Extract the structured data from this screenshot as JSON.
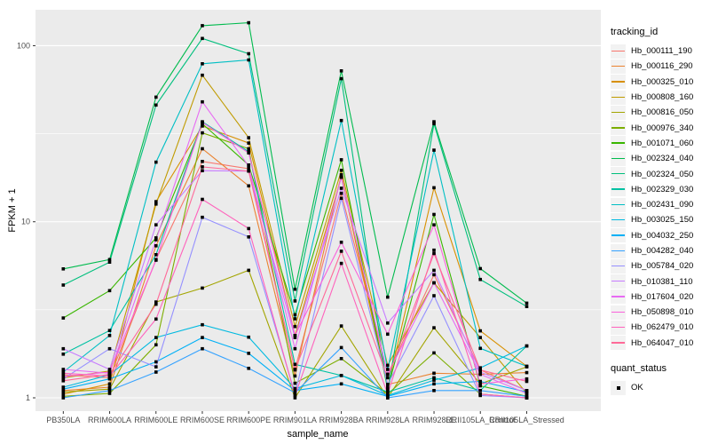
{
  "figure": {
    "background": "#FFFFFF",
    "panel_background": "#EBEBEB",
    "grid_color": "#FFFFFF",
    "tick_color": "#333333",
    "tick_label_color": "#4D4D4D",
    "point_color": "#000000"
  },
  "chart_data": {
    "type": "line",
    "title": "",
    "xlabel": "sample_name",
    "ylabel": "FPKM + 1",
    "y_scale": "log10",
    "grid": true,
    "legend_position": "right",
    "y_ticks": [
      "100",
      "10",
      "1"
    ],
    "y_tick_values": [
      100,
      10,
      1
    ],
    "y_minor_values": [
      3.1623,
      31.623
    ],
    "ylim": [
      0.84,
      160
    ],
    "categories": [
      "PB350LA",
      "RRIM600LA",
      "RRIM600LE",
      "RRIM600SE",
      "RRIM600PE",
      "RRIM901LA",
      "RRIM928BA",
      "RRIM928LA",
      "RRIM928LE",
      "RRII105LA_Control",
      "RRII105LA_Stressed"
    ],
    "legend_titles": {
      "series": "tracking_id",
      "shape": "quant_status"
    },
    "quant_status": {
      "label": "OK"
    },
    "series": [
      {
        "name": "Hb_000111_190",
        "color": "#F8766D",
        "values": [
          1.35,
          1.3,
          6.1,
          22.0,
          20.0,
          1.45,
          14.5,
          1.36,
          5.0,
          1.44,
          1.1
        ]
      },
      {
        "name": "Hb_000116_290",
        "color": "#EA8331",
        "values": [
          1.1,
          1.15,
          7.3,
          26.0,
          16.0,
          1.33,
          18.5,
          1.19,
          1.38,
          1.36,
          1.39
        ]
      },
      {
        "name": "Hb_000325_010",
        "color": "#D89000",
        "values": [
          1.05,
          1.2,
          13.0,
          35.0,
          28.0,
          2.26,
          17.9,
          1.15,
          15.6,
          2.4,
          1.51
        ]
      },
      {
        "name": "Hb_000808_160",
        "color": "#C09B00",
        "values": [
          1.3,
          1.42,
          12.6,
          68.0,
          30.0,
          2.54,
          19.6,
          1.53,
          4.5,
          2.2,
          1.06
        ]
      },
      {
        "name": "Hb_000816_050",
        "color": "#A3A500",
        "values": [
          1.08,
          1.12,
          3.5,
          4.2,
          5.3,
          1.0,
          2.56,
          1.0,
          2.5,
          1.2,
          1.5
        ]
      },
      {
        "name": "Hb_000976_340",
        "color": "#7CAE00",
        "values": [
          1.02,
          1.06,
          2.0,
          32.0,
          26.0,
          1.21,
          1.67,
          1.05,
          1.8,
          1.05,
          1.0
        ]
      },
      {
        "name": "Hb_001071_060",
        "color": "#39B600",
        "values": [
          2.84,
          4.06,
          8.1,
          36.0,
          21.0,
          2.96,
          22.5,
          1.12,
          11.0,
          1.17,
          1.02
        ]
      },
      {
        "name": "Hb_002324_040",
        "color": "#00BB4E",
        "values": [
          5.4,
          6.1,
          51.0,
          130.0,
          135.0,
          4.14,
          72.0,
          3.73,
          37.0,
          5.42,
          3.45
        ]
      },
      {
        "name": "Hb_002324_050",
        "color": "#00BF7D",
        "values": [
          4.37,
          5.9,
          46.0,
          110.0,
          90.0,
          3.55,
          65.0,
          1.1,
          36.0,
          4.7,
          3.3
        ]
      },
      {
        "name": "Hb_002329_030",
        "color": "#00C1A3",
        "values": [
          1.77,
          2.41,
          6.5,
          37.0,
          25.0,
          1.55,
          1.34,
          1.08,
          1.3,
          1.1,
          1.97
        ]
      },
      {
        "name": "Hb_002431_090",
        "color": "#00BFC4",
        "values": [
          1.4,
          2.26,
          21.8,
          79.0,
          83.0,
          2.81,
          37.6,
          1.45,
          25.5,
          1.91,
          1.51
        ]
      },
      {
        "name": "Hb_003025_150",
        "color": "#00BAE0",
        "values": [
          1.15,
          1.35,
          2.2,
          2.6,
          2.21,
          1.13,
          1.34,
          1.03,
          1.26,
          1.48,
          1.97
        ]
      },
      {
        "name": "Hb_004032_250",
        "color": "#00B0F6",
        "values": [
          1.12,
          1.28,
          1.6,
          2.2,
          1.79,
          1.1,
          1.2,
          1.02,
          1.2,
          1.24,
          1.08
        ]
      },
      {
        "name": "Hb_004282_040",
        "color": "#35A2FF",
        "values": [
          1.0,
          1.1,
          1.4,
          1.9,
          1.47,
          1.07,
          1.93,
          1.0,
          1.1,
          1.1,
          1.02
        ]
      },
      {
        "name": "Hb_005784_020",
        "color": "#9590FF",
        "values": [
          1.28,
          1.9,
          1.5,
          10.6,
          8.2,
          1.05,
          13.6,
          1.19,
          3.8,
          1.03,
          1.0
        ]
      },
      {
        "name": "Hb_010381_110",
        "color": "#C77CFF",
        "values": [
          1.9,
          1.45,
          9.6,
          19.5,
          19.4,
          2.2,
          15.5,
          2.66,
          5.3,
          1.4,
          1.1
        ]
      },
      {
        "name": "Hb_017604_020",
        "color": "#E76BF3",
        "values": [
          1.45,
          1.38,
          7.9,
          48.0,
          20.7,
          1.9,
          17.9,
          1.36,
          4.5,
          1.36,
          1.06
        ]
      },
      {
        "name": "Hb_050898_010",
        "color": "#FA62DB",
        "values": [
          1.32,
          1.4,
          6.05,
          36.7,
          24.6,
          2.26,
          7.65,
          2.3,
          9.6,
          1.2,
          1.28
        ]
      },
      {
        "name": "Hb_062479_010",
        "color": "#FF62BC",
        "values": [
          1.38,
          1.33,
          2.8,
          13.4,
          9.15,
          1.03,
          5.8,
          1.05,
          6.9,
          1.05,
          1.0
        ]
      },
      {
        "name": "Hb_064047_010",
        "color": "#FF6A98",
        "values": [
          1.25,
          1.36,
          3.4,
          20.5,
          19.4,
          1.44,
          6.8,
          1.3,
          6.6,
          1.44,
          1.24
        ]
      }
    ]
  }
}
